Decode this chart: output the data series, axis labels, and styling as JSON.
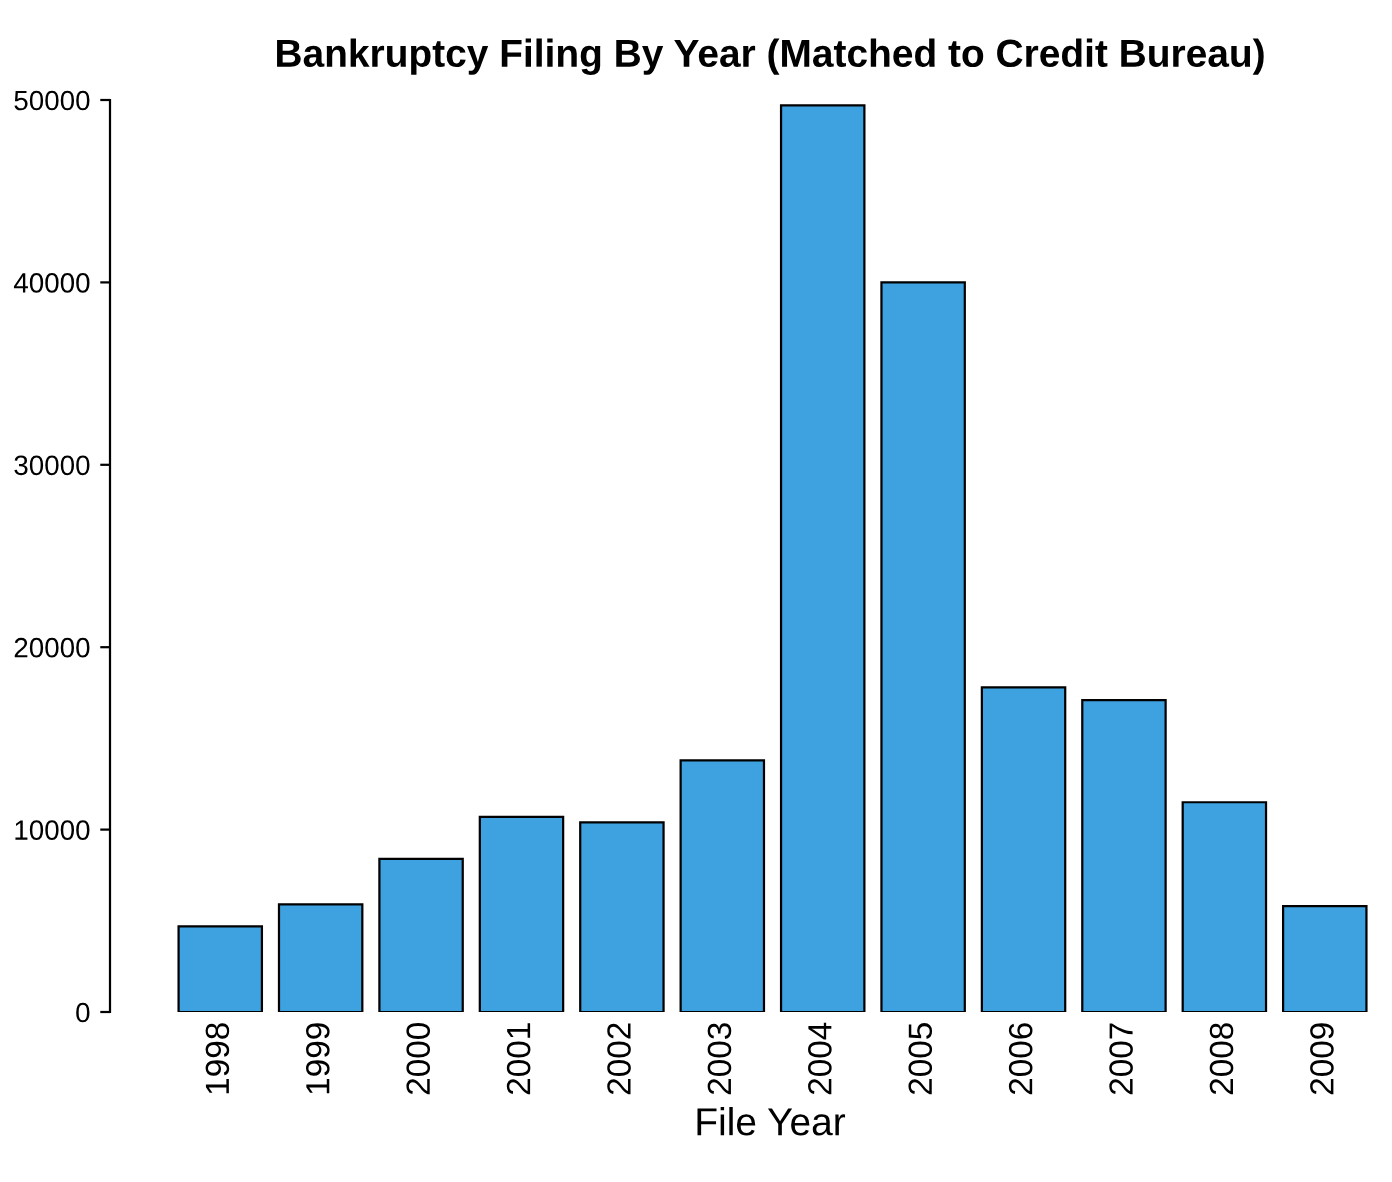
{
  "chart_data": {
    "type": "bar",
    "title": "Bankruptcy Filing By Year (Matched to Credit Bureau)",
    "xlabel": "File Year",
    "categories": [
      "1998",
      "1999",
      "2000",
      "2001",
      "2002",
      "2003",
      "2004",
      "2005",
      "2006",
      "2007",
      "2008",
      "2009"
    ],
    "values": [
      4700,
      5900,
      8400,
      10700,
      10400,
      13800,
      49700,
      40000,
      17800,
      17100,
      11500,
      5800
    ],
    "color": "#3fa2e0",
    "ylim": [
      0,
      50000
    ],
    "yticks": [
      0,
      10000,
      20000,
      30000,
      40000,
      50000
    ],
    "grid": false
  }
}
